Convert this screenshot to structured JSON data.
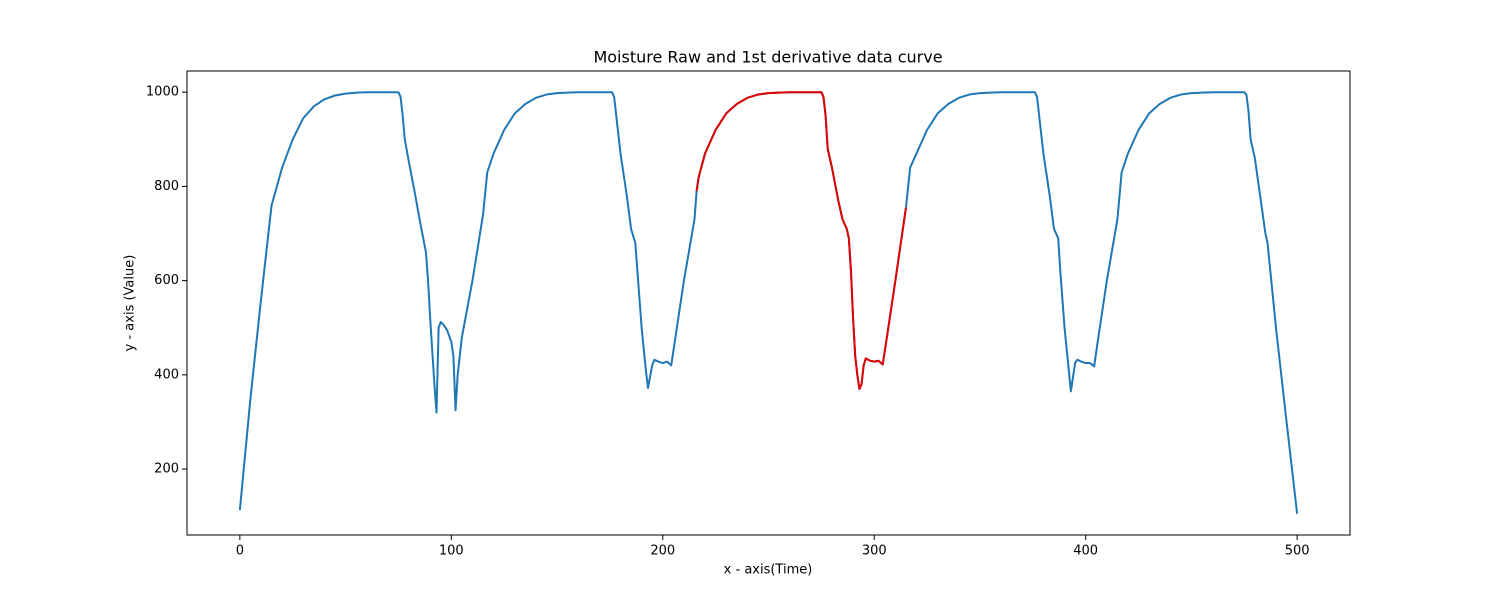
{
  "chart_data": {
    "type": "line",
    "title": "Moisture Raw and 1st derivative data curve",
    "x_label": "x - axis(Time)",
    "y_label": "y - axis (Value)",
    "xlim": [
      -25,
      525
    ],
    "xticks": [
      0,
      100,
      200,
      300,
      400,
      500
    ],
    "ylim": [
      60,
      1045
    ],
    "yticks": [
      200,
      400,
      600,
      800,
      1000
    ],
    "series": [
      {
        "color": "#1f77b4",
        "x": [
          0,
          5,
          10,
          15,
          20,
          25,
          30,
          35,
          40,
          45,
          50,
          55,
          60,
          75,
          76,
          77,
          78,
          80,
          83,
          85,
          88,
          89,
          90,
          91,
          92,
          93,
          94,
          95,
          96,
          98,
          100,
          101,
          102,
          103,
          105,
          110,
          115,
          117,
          120,
          125,
          130,
          135,
          140,
          145,
          150,
          155,
          160,
          176,
          177,
          178,
          180,
          183,
          185,
          187,
          188,
          190,
          192,
          193,
          195,
          196,
          198,
          200,
          202,
          204,
          206,
          210,
          215,
          216,
          217,
          220,
          225,
          230,
          235,
          240,
          245,
          250,
          255,
          260,
          275,
          276,
          277,
          278,
          280,
          283,
          285,
          287,
          288,
          289,
          290,
          291,
          292,
          293,
          294,
          295,
          296,
          298,
          300,
          302,
          304,
          306,
          310,
          315,
          317,
          320,
          325,
          330,
          335,
          340,
          345,
          350,
          355,
          360,
          376,
          377,
          378,
          380,
          383,
          385,
          387,
          388,
          390,
          392,
          393,
          395,
          396,
          398,
          400,
          402,
          404,
          406,
          410,
          415,
          417,
          420,
          425,
          430,
          435,
          440,
          445,
          450,
          455,
          460,
          475,
          476,
          477,
          478,
          480,
          485,
          486,
          490,
          495,
          500
        ],
        "values": [
          113,
          350,
          560,
          760,
          840,
          900,
          945,
          970,
          985,
          993,
          997,
          999,
          1000,
          1000,
          990,
          950,
          900,
          850,
          780,
          730,
          660,
          600,
          520,
          450,
          380,
          320,
          500,
          512,
          508,
          495,
          470,
          440,
          325,
          400,
          480,
          600,
          740,
          830,
          870,
          920,
          955,
          975,
          988,
          995,
          998,
          999,
          1000,
          1000,
          990,
          950,
          870,
          780,
          710,
          680,
          620,
          500,
          410,
          372,
          420,
          432,
          428,
          425,
          428,
          420,
          480,
          600,
          730,
          790,
          820,
          870,
          920,
          955,
          975,
          988,
          995,
          998,
          999,
          1000,
          1000,
          990,
          950,
          880,
          840,
          770,
          730,
          710,
          690,
          620,
          520,
          440,
          400,
          370,
          380,
          420,
          435,
          430,
          428,
          430,
          422,
          480,
          600,
          755,
          840,
          870,
          920,
          955,
          975,
          988,
          995,
          998,
          999,
          1000,
          1000,
          990,
          950,
          870,
          780,
          710,
          690,
          620,
          500,
          410,
          365,
          425,
          432,
          428,
          425,
          425,
          418,
          480,
          600,
          730,
          830,
          870,
          920,
          955,
          975,
          988,
          995,
          998,
          999,
          1000,
          1000,
          995,
          960,
          900,
          860,
          700,
          680,
          500,
          300,
          105
        ]
      },
      {
        "color": "#e00000",
        "x": [
          216,
          217,
          220,
          225,
          230,
          235,
          240,
          245,
          250,
          255,
          260,
          275,
          276,
          277,
          278,
          280,
          283,
          285,
          287,
          288,
          289,
          290,
          291,
          292,
          293,
          294,
          295,
          296,
          298,
          300,
          302,
          304,
          306,
          310,
          315
        ],
        "values": [
          790,
          820,
          870,
          920,
          955,
          975,
          988,
          995,
          998,
          999,
          1000,
          1000,
          990,
          950,
          880,
          840,
          770,
          730,
          710,
          690,
          620,
          520,
          440,
          400,
          370,
          380,
          420,
          435,
          430,
          428,
          430,
          422,
          480,
          600,
          755
        ]
      }
    ]
  }
}
